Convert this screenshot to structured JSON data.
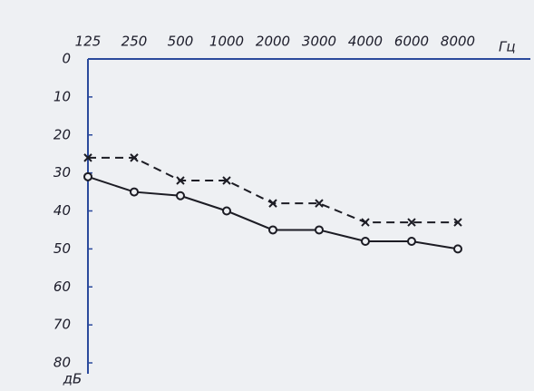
{
  "chart_data": {
    "type": "line",
    "categories": [
      "125",
      "250",
      "500",
      "1000",
      "2000",
      "3000",
      "4000",
      "6000",
      "8000"
    ],
    "x_unit": "Гц",
    "y_unit": "дБ",
    "series": [
      {
        "color": "#1c1c24",
        "marker": "o",
        "dashed": false,
        "values": [
          31,
          35,
          36,
          40,
          45,
          45,
          48,
          48,
          50
        ]
      },
      {
        "color": "#1c1c24",
        "marker": "x",
        "dashed": true,
        "values": [
          26,
          26,
          32,
          32,
          38,
          38,
          43,
          43,
          43
        ]
      }
    ],
    "ylim": [
      0,
      80
    ],
    "yticks": [
      0,
      10,
      20,
      30,
      40,
      50,
      60,
      70,
      80
    ],
    "y_reversed": true,
    "axis_color": "#2b4a9c",
    "grid": false
  }
}
